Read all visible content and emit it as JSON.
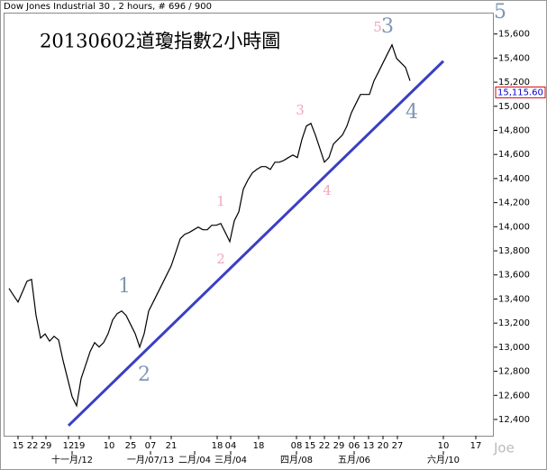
{
  "chart_data": {
    "type": "line",
    "header": "Dow Jones Industrial 30 , 2 hours, # 696 / 900",
    "title": "20130602道瓊指數2小時圖",
    "watermark": "Joe",
    "color": "#000000",
    "x": [
      0,
      1,
      2,
      3,
      4,
      5,
      6,
      7,
      8,
      9,
      10,
      11,
      12,
      13,
      14,
      15,
      16,
      17,
      18,
      19,
      20,
      21,
      22,
      23,
      24,
      25,
      26,
      27,
      28,
      29,
      30,
      31,
      32,
      33,
      34,
      35,
      36,
      37,
      38,
      39,
      40,
      41,
      42,
      43,
      44,
      45,
      46,
      47,
      48,
      49,
      50,
      51,
      52,
      53,
      54,
      55,
      56,
      57,
      58,
      59,
      60,
      61,
      62,
      63,
      64,
      65,
      66,
      67,
      68,
      69,
      70,
      71,
      72,
      73,
      74,
      75,
      76,
      77,
      78,
      79,
      80,
      81,
      82,
      83,
      84,
      85,
      86,
      87,
      88,
      89
    ],
    "values": [
      13488,
      13430,
      13375,
      13460,
      13548,
      13563,
      13263,
      13076,
      13110,
      13050,
      13090,
      13060,
      12889,
      12739,
      12589,
      12514,
      12739,
      12851,
      12964,
      13038,
      13001,
      13038,
      13113,
      13226,
      13278,
      13301,
      13263,
      13188,
      13113,
      13001,
      13113,
      13301,
      13375,
      13450,
      13525,
      13600,
      13675,
      13787,
      13900,
      13937,
      13952,
      13975,
      13997,
      13975,
      13975,
      14012,
      14012,
      14027,
      13952,
      13877,
      14050,
      14124,
      14312,
      14387,
      14447,
      14476,
      14499,
      14499,
      14476,
      14536,
      14536,
      14551,
      14574,
      14596,
      14574,
      14724,
      14836,
      14858,
      14761,
      14649,
      14536,
      14574,
      14686,
      14724,
      14761,
      14836,
      14948,
      15023,
      15098,
      15098,
      15098,
      15211,
      15285,
      15360,
      15435,
      15510,
      15398,
      15360,
      15323,
      15211
    ],
    "xlim": [
      -1,
      107.6
    ],
    "ylim": [
      12265,
      15770
    ],
    "yticks": [
      {
        "value": 12400,
        "label": "12,400"
      },
      {
        "value": 12600,
        "label": "12,600"
      },
      {
        "value": 12800,
        "label": "12,800"
      },
      {
        "value": 13000,
        "label": "13,000"
      },
      {
        "value": 13200,
        "label": "13,200"
      },
      {
        "value": 13400,
        "label": "13,400"
      },
      {
        "value": 13600,
        "label": "13,600"
      },
      {
        "value": 13800,
        "label": "13,800"
      },
      {
        "value": 14000,
        "label": "14,000"
      },
      {
        "value": 14200,
        "label": "14,200"
      },
      {
        "value": 14400,
        "label": "14,400"
      },
      {
        "value": 14600,
        "label": "14,600"
      },
      {
        "value": 14800,
        "label": "14,800"
      },
      {
        "value": 15000,
        "label": "15,000"
      },
      {
        "value": 15200,
        "label": "15,200"
      },
      {
        "value": 15400,
        "label": "15,400"
      },
      {
        "value": 15600,
        "label": "15,600"
      }
    ],
    "xticks": [
      {
        "value": 2,
        "label": "15"
      },
      {
        "value": 5.2,
        "label": "22"
      },
      {
        "value": 8.2,
        "label": "29"
      },
      {
        "value": 13.2,
        "label": "12"
      },
      {
        "value": 15.6,
        "label": "19"
      },
      {
        "value": 22.2,
        "label": "10"
      },
      {
        "value": 27,
        "label": "25"
      },
      {
        "value": 31.4,
        "label": "07"
      },
      {
        "value": 36,
        "label": "21"
      },
      {
        "value": 46.2,
        "label": "18"
      },
      {
        "value": 49.2,
        "label": "04"
      },
      {
        "value": 55.4,
        "label": "18"
      },
      {
        "value": 63.8,
        "label": "08"
      },
      {
        "value": 66.8,
        "label": "15"
      },
      {
        "value": 70,
        "label": "22"
      },
      {
        "value": 73.2,
        "label": "29"
      },
      {
        "value": 76.6,
        "label": "06"
      },
      {
        "value": 79.8,
        "label": "13"
      },
      {
        "value": 83,
        "label": "20"
      },
      {
        "value": 86.2,
        "label": "27"
      },
      {
        "value": 96.4,
        "label": "10"
      },
      {
        "value": 103.6,
        "label": "17"
      }
    ],
    "xmonths": [
      {
        "value": 14,
        "label": "十一月/12"
      },
      {
        "value": 31.4,
        "label": "一月/07/13"
      },
      {
        "value": 41.2,
        "label": "二月/04"
      },
      {
        "value": 49.2,
        "label": "三月/04"
      },
      {
        "value": 63.8,
        "label": "四月/08"
      },
      {
        "value": 76.6,
        "label": "五月/06"
      },
      {
        "value": 96.4,
        "label": "六月/10"
      }
    ],
    "last_price": {
      "value": 15115.6,
      "label": "15,115.60"
    },
    "trendline": {
      "color": "#3a3fc4",
      "x": [
        13.2,
        96.4
      ],
      "values": [
        12349,
        15375
      ]
    },
    "waves_major": [
      "1",
      "2",
      "3",
      "4",
      "5"
    ],
    "waves_minor": [
      "1",
      "2",
      "3",
      "4",
      "5"
    ]
  }
}
